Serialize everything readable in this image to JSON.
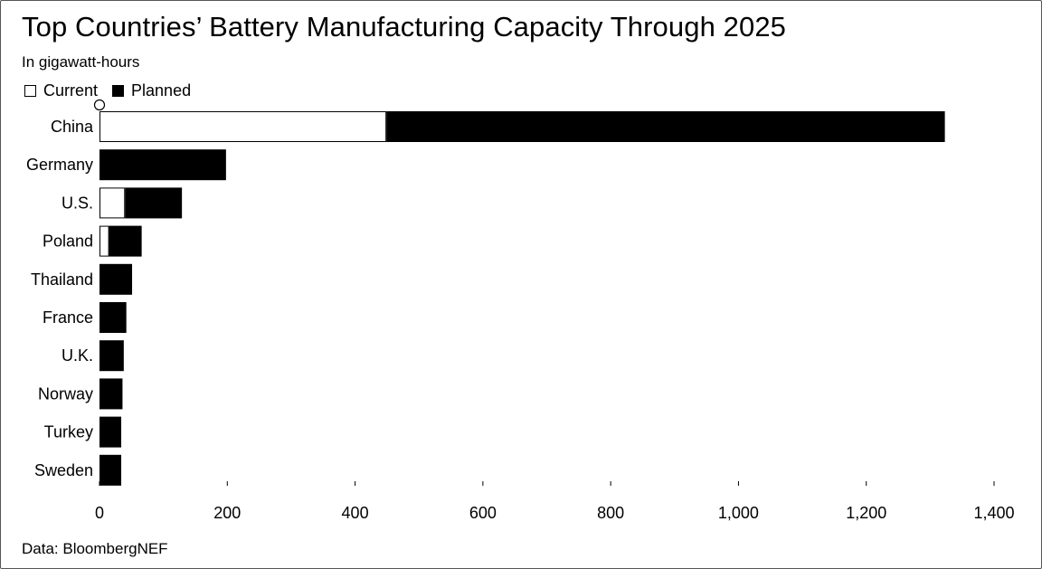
{
  "header": {
    "title": "Top Countries’ Battery Manufacturing Capacity Through 2025",
    "subtitle": "In gigawatt-hours"
  },
  "legend": {
    "current_label": "Current",
    "planned_label": "Planned"
  },
  "footer": {
    "source": "Data: BloombergNEF"
  },
  "colors": {
    "current": "#ffffff",
    "planned": "#000000",
    "outline": "#000000"
  },
  "chart_data": {
    "type": "bar",
    "orientation": "horizontal",
    "stacked": true,
    "categories": [
      "China",
      "Germany",
      "U.S.",
      "Poland",
      "Thailand",
      "France",
      "U.K.",
      "Norway",
      "Turkey",
      "Sweden"
    ],
    "series": [
      {
        "name": "Current",
        "values": [
          449,
          0,
          40,
          15,
          0,
          0,
          0,
          0,
          0,
          0
        ]
      },
      {
        "name": "Planned",
        "values": [
          874,
          198,
          89,
          51,
          51,
          42,
          38,
          36,
          34,
          34
        ]
      }
    ],
    "xlim": [
      0,
      1400
    ],
    "x_ticks": [
      0,
      200,
      400,
      600,
      800,
      1000,
      1200,
      1400
    ],
    "x_tick_labels": [
      "0",
      "200",
      "400",
      "600",
      "800",
      "1,000",
      "1,200",
      "1,400"
    ],
    "grid": false,
    "legend_position": "top-left"
  }
}
